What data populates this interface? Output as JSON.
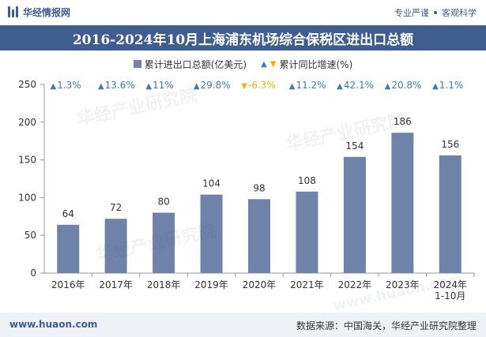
{
  "header": {
    "logo_text": "华经情报网",
    "slogan_left": "专业严谨",
    "slogan_right": "客观科学"
  },
  "colors": {
    "bar": "#6f82a8",
    "title_bg": "#3f5d8f",
    "up": "#3a7bbf",
    "down": "#f0b400",
    "growth_text": "#3a7bbf"
  },
  "watermark": {
    "text": "华经产业研究院",
    "url": "www.huaon.com"
  },
  "chart_data": {
    "type": "bar",
    "title": "2016-2024年10月上海浦东机场综合保税区进出口总额",
    "categories": [
      "2016年",
      "2017年",
      "2018年",
      "2019年",
      "2020年",
      "2021年",
      "2022年",
      "2023年",
      "2024年\n1-10月"
    ],
    "series": [
      {
        "name": "累计进出口总额(亿美元)",
        "values": [
          64,
          72,
          80,
          104,
          98,
          108,
          154,
          186,
          156
        ]
      },
      {
        "name": "累计同比增速(%)",
        "values": [
          1.3,
          13.6,
          11,
          29.8,
          -6.3,
          11.2,
          42.1,
          20.8,
          1.1
        ],
        "labels": [
          "1.3%",
          "13.6%",
          "11%",
          "29.8%",
          "-6.3%",
          "11.2%",
          "42.1%",
          "20.8%",
          "1.1%"
        ]
      }
    ],
    "ylim": [
      0,
      250
    ],
    "yticks": [
      0,
      50,
      100,
      150,
      200,
      250
    ],
    "grid": false,
    "legend": "top-center"
  },
  "footer": {
    "url": "www.huaon.com",
    "source": "数据来源：中国海关，华经产业研究院整理"
  }
}
